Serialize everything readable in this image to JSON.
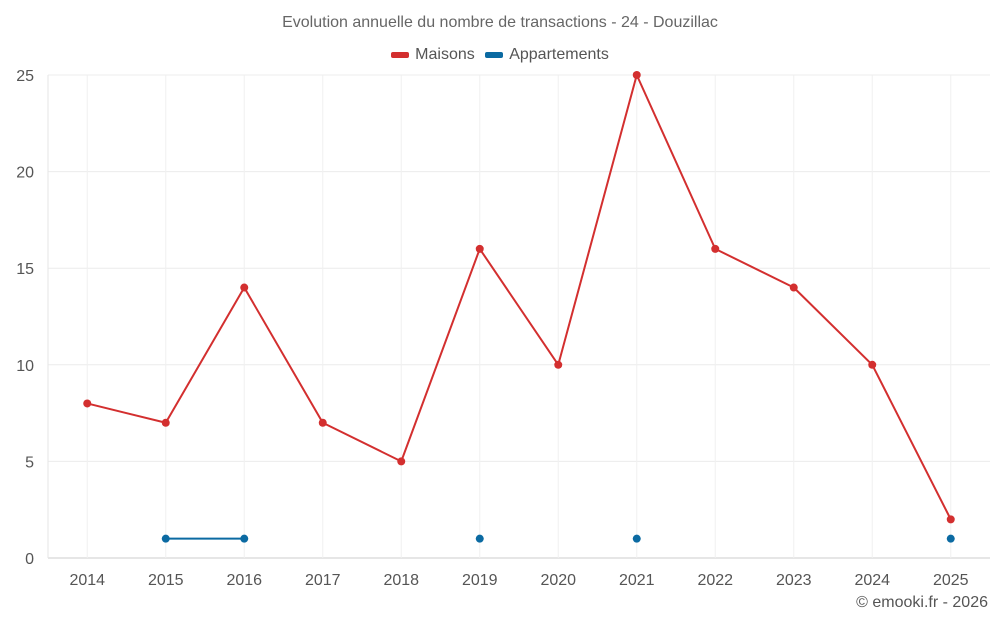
{
  "chart_data": {
    "type": "line",
    "title": "Evolution annuelle du nombre de transactions - 24 - Douzillac",
    "x": [
      "2014",
      "2015",
      "2016",
      "2017",
      "2018",
      "2019",
      "2020",
      "2021",
      "2022",
      "2023",
      "2024",
      "2025"
    ],
    "ylim": [
      0,
      25
    ],
    "yticks": [
      0,
      5,
      10,
      15,
      20,
      25
    ],
    "grid": true,
    "legend_position": "top-center",
    "series": [
      {
        "name": "Maisons",
        "color": "#d32f2f",
        "values": [
          8,
          7,
          14,
          7,
          5,
          16,
          10,
          25,
          16,
          14,
          10,
          2
        ]
      },
      {
        "name": "Appartements",
        "color": "#0b6aa2",
        "values": [
          null,
          1,
          1,
          null,
          null,
          1,
          null,
          1,
          null,
          null,
          null,
          1
        ]
      }
    ]
  },
  "credit": "© emooki.fr - 2026"
}
